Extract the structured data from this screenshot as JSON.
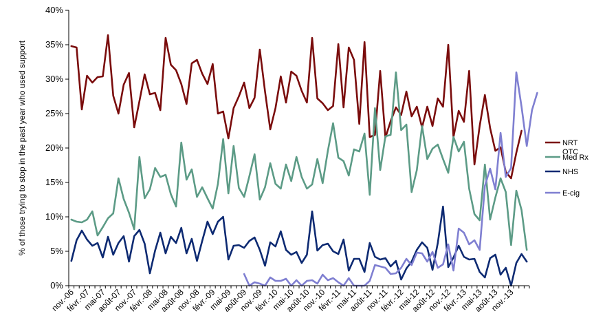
{
  "chart_data": {
    "type": "line",
    "title": "",
    "xlabel": "",
    "ylabel": "% of those trying to stop in the past year who used support",
    "ylim": [
      0,
      40
    ],
    "yticks": [
      "0%",
      "5%",
      "10%",
      "15%",
      "20%",
      "25%",
      "30%",
      "35%",
      "40%"
    ],
    "xtick_labels": [
      "nov.-06",
      "févr.-07",
      "mai-07",
      "août-07",
      "nov.-07",
      "févr.-08",
      "mai-08",
      "août-08",
      "nov.-08",
      "févr.-09",
      "mai-09",
      "août-09",
      "nov.-09",
      "févr.-10",
      "mai-10",
      "août-10",
      "nov.-10",
      "févr.-11",
      "mai-11",
      "août-11",
      "nov.-11",
      "févr.-12",
      "mai-12",
      "août-12",
      "nov.-12",
      "févr.-13",
      "mai-13",
      "août-13",
      "nov.-13"
    ],
    "months_first": "nov.-06",
    "grid": false,
    "legend_position": "right",
    "series": [
      {
        "name": "NRT OTC",
        "color": "#7a0c0c",
        "start_index": 0,
        "values": [
          34.8,
          34.6,
          25.6,
          30.5,
          29.5,
          30.3,
          30.4,
          36.4,
          27.6,
          25.0,
          29.2,
          30.9,
          23.0,
          26.8,
          30.7,
          27.8,
          28.0,
          25.5,
          36.0,
          32.1,
          31.3,
          29.3,
          26.4,
          32.3,
          32.8,
          30.8,
          29.3,
          32.2,
          25.0,
          25.3,
          21.4,
          25.8,
          27.5,
          29.5,
          25.8,
          27.3,
          34.3,
          28.2,
          22.7,
          25.8,
          30.4,
          26.6,
          31.1,
          30.5,
          28.3,
          26.6,
          36.0,
          27.2,
          26.5,
          25.5,
          26.1,
          35.1,
          25.9,
          34.6,
          32.8,
          23.5,
          35.4,
          21.6,
          21.9,
          31.2,
          21.5,
          23.9,
          25.9,
          24.8,
          28.2,
          24.6,
          26.0,
          23.0,
          26.0,
          23.2,
          27.2,
          26.0,
          35.0,
          21.6,
          25.4,
          23.8,
          31.2,
          17.6,
          23.2,
          27.7,
          22.9,
          19.6,
          20.1,
          16.5,
          15.6,
          19.3,
          22.5
        ]
      },
      {
        "name": "Med Rx",
        "color": "#5c9b86",
        "start_index": 0,
        "values": [
          9.6,
          9.3,
          9.2,
          9.6,
          10.8,
          7.3,
          8.5,
          9.8,
          10.5,
          15.6,
          12.6,
          10.6,
          8.2,
          18.7,
          12.7,
          14.0,
          17.1,
          15.8,
          16.1,
          13.3,
          11.5,
          20.8,
          15.4,
          16.9,
          12.9,
          14.3,
          12.7,
          11.2,
          14.8,
          21.3,
          13.4,
          20.3,
          14.2,
          12.9,
          15.9,
          19.1,
          12.5,
          14.3,
          17.8,
          14.8,
          14.1,
          17.6,
          15.2,
          18.7,
          15.8,
          14.1,
          14.7,
          18.4,
          14.9,
          19.6,
          23.6,
          18.6,
          18.1,
          16.0,
          19.8,
          19.5,
          22.1,
          13.2,
          25.8,
          16.8,
          21.7,
          21.9,
          31.0,
          22.6,
          23.4,
          13.6,
          16.8,
          23.2,
          18.4,
          19.9,
          20.5,
          18.4,
          16.4,
          21.6,
          19.5,
          20.9,
          14.1,
          10.4,
          9.5,
          17.6,
          9.6,
          12.8,
          15.6,
          13.6,
          5.9,
          13.8,
          11.0,
          5.2
        ]
      },
      {
        "name": "NHS",
        "color": "#0d2a72",
        "start_index": 0,
        "values": [
          3.6,
          6.6,
          8.0,
          6.7,
          5.8,
          6.2,
          4.1,
          7.1,
          4.5,
          6.2,
          7.2,
          3.5,
          7.2,
          8.1,
          6.1,
          1.8,
          5.1,
          7.7,
          4.7,
          7.1,
          6.2,
          8.4,
          4.7,
          6.8,
          3.6,
          6.5,
          9.3,
          7.5,
          9.3,
          10.0,
          3.8,
          5.8,
          5.9,
          5.5,
          6.5,
          7.0,
          5.2,
          2.9,
          6.3,
          5.7,
          7.9,
          5.2,
          4.5,
          4.9,
          3.3,
          4.5,
          10.8,
          5.1,
          5.9,
          6.1,
          5.0,
          4.6,
          6.7,
          2.2,
          3.9,
          3.9,
          2.0,
          6.2,
          4.2,
          3.8,
          4.0,
          2.8,
          3.6,
          0.9,
          2.5,
          3.5,
          5.2,
          6.3,
          5.5,
          2.3,
          6.2,
          11.5,
          2.7,
          4.1,
          5.8,
          4.2,
          3.8,
          3.9,
          2.0,
          1.2,
          4.0,
          4.5,
          1.6,
          2.6,
          0.0,
          3.3,
          4.6,
          3.5
        ]
      },
      {
        "name": "E-cig",
        "color": "#7f7fd1",
        "start_index": 33,
        "values": [
          1.7,
          0.0,
          0.5,
          0.3,
          0.0,
          1.2,
          0.7,
          0.7,
          1.0,
          0.0,
          0.8,
          0.0,
          0.7,
          0.8,
          0.3,
          1.6,
          0.8,
          1.1,
          0.5,
          0.0,
          1.1,
          0.0,
          0.0,
          0.0,
          0.7,
          3.0,
          2.8,
          2.6,
          1.7,
          1.8,
          2.6,
          3.9,
          3.0,
          4.8,
          4.7,
          3.5,
          4.9,
          2.6,
          3.1,
          6.0,
          2.2,
          8.3,
          7.7,
          6.0,
          6.6,
          5.2,
          14.5,
          17.0,
          14.0,
          22.2,
          15.8,
          17.1,
          31.0,
          26.0,
          20.3,
          25.5,
          28.0
        ]
      }
    ]
  }
}
